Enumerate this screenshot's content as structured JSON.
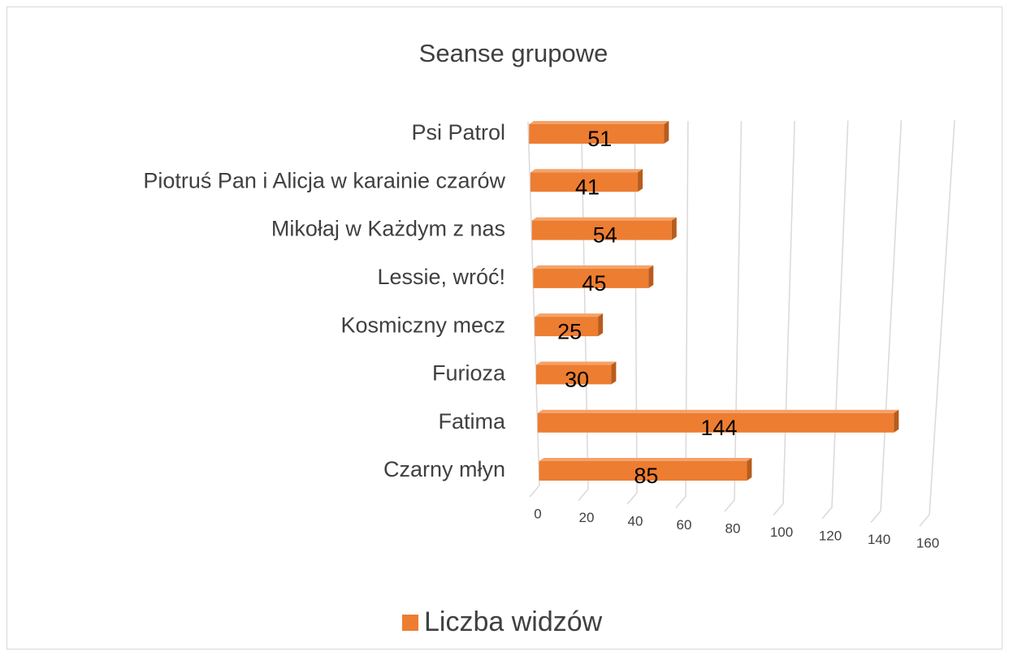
{
  "chart_data": {
    "type": "bar",
    "orientation": "horizontal",
    "title": "Seanse grupowe",
    "categories": [
      "Czarny młyn",
      "Fatima",
      "Furioza",
      "Kosmiczny mecz",
      "Lessie, wróć!",
      "Mikołaj w Każdym z nas",
      "Piotruś Pan i Alicja w karainie czarów",
      "Psi Patrol"
    ],
    "series": [
      {
        "name": "Liczba widzów",
        "color": "#ed7d31",
        "values": [
          85,
          144,
          30,
          25,
          45,
          54,
          41,
          51
        ]
      }
    ],
    "xlim": [
      0,
      160
    ],
    "xticks": [
      0,
      20,
      40,
      60,
      80,
      100,
      120,
      140,
      160
    ],
    "grid": true,
    "legend": "bottom"
  }
}
